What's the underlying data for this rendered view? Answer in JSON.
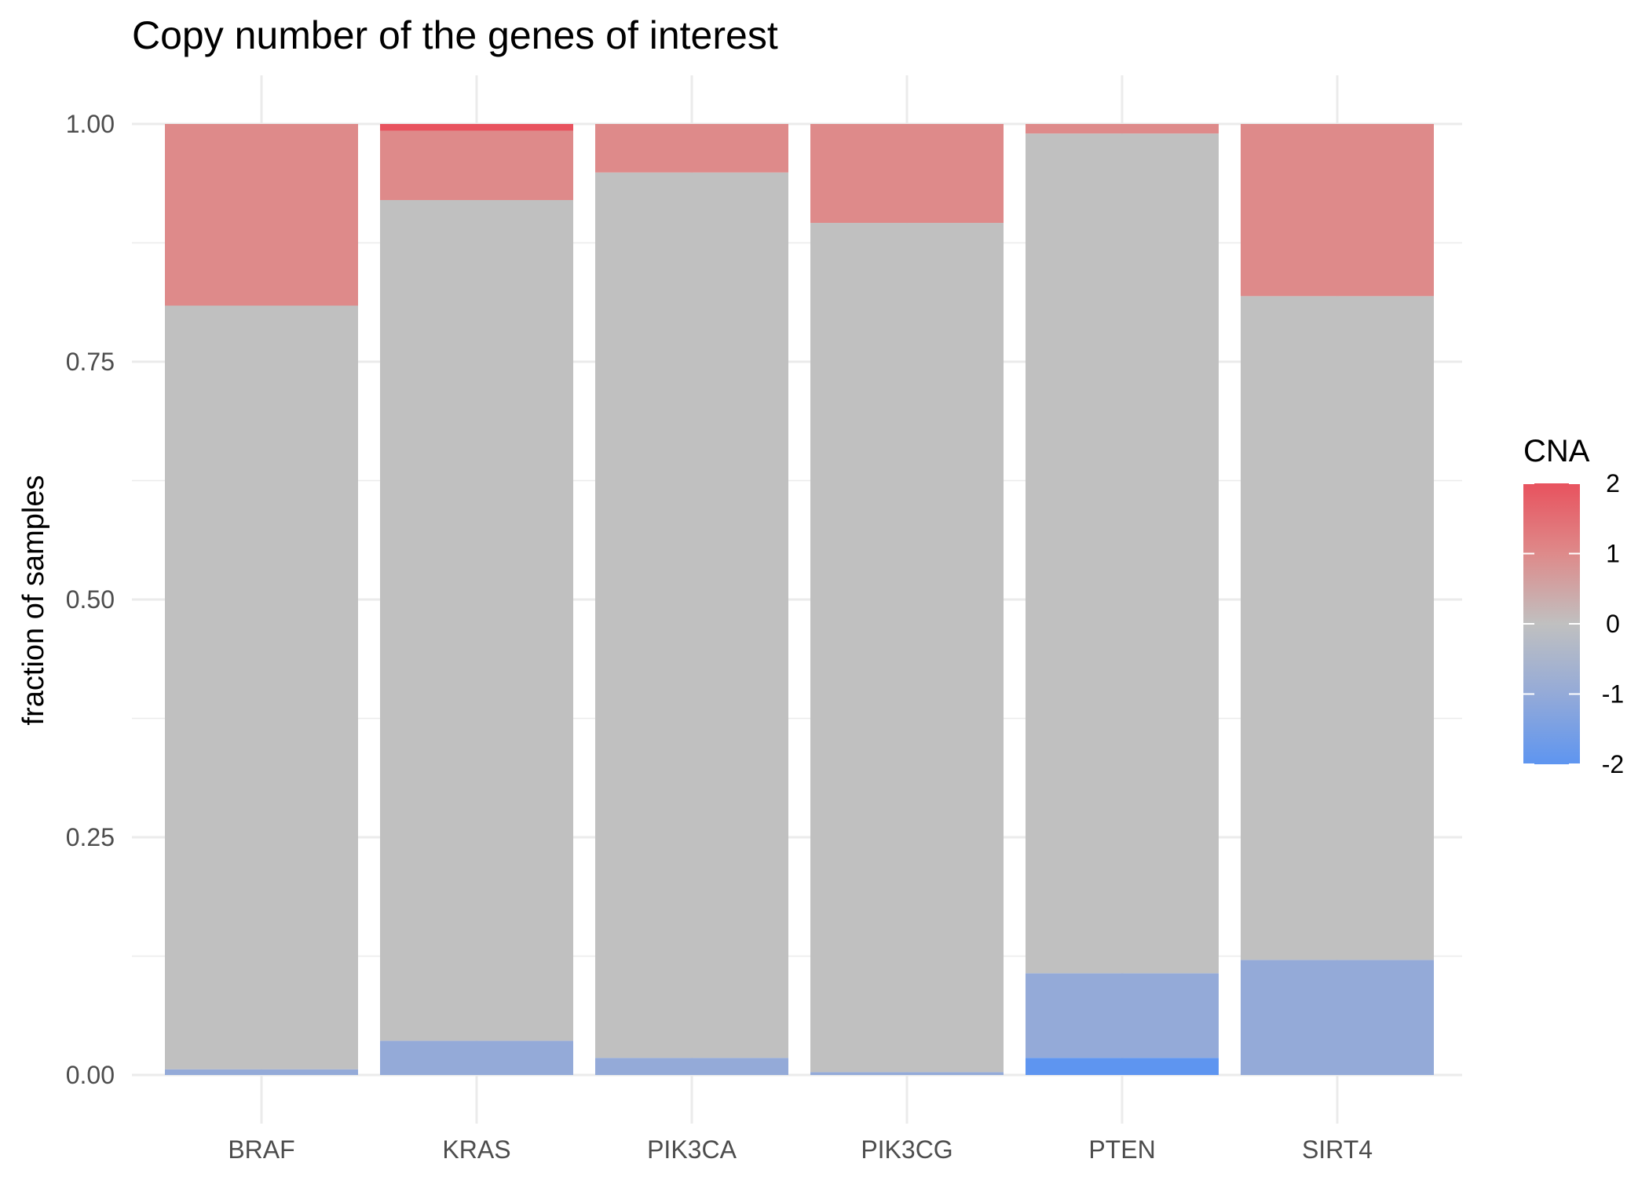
{
  "chart_data": {
    "type": "bar",
    "stacked": true,
    "title": "Copy number of the genes of interest",
    "xlabel": "",
    "ylabel": "fraction of samples",
    "ylim": [
      0,
      1
    ],
    "y_ticks": [
      "0.00",
      "0.25",
      "0.50",
      "0.75",
      "1.00"
    ],
    "grid": true,
    "categories": [
      "BRAF",
      "KRAS",
      "PIK3CA",
      "PIK3CG",
      "PTEN",
      "SIRT4"
    ],
    "series": [
      {
        "cna": -2,
        "color": "#5e95f0",
        "values": [
          0,
          0,
          0,
          0,
          0.018,
          0
        ]
      },
      {
        "cna": -1,
        "color": "#94aad8",
        "values": [
          0.006,
          0.036,
          0.018,
          0.003,
          0.089,
          0.121
        ]
      },
      {
        "cna": 0,
        "color": "#c0c0c0",
        "values": [
          0.803,
          0.884,
          0.931,
          0.893,
          0.883,
          0.698
        ]
      },
      {
        "cna": 1,
        "color": "#de8a8a",
        "values": [
          0.191,
          0.073,
          0.051,
          0.104,
          0.01,
          0.181
        ]
      },
      {
        "cna": 2,
        "color": "#e8525e",
        "values": [
          0,
          0.007,
          0,
          0,
          0,
          0
        ]
      }
    ],
    "legend": {
      "title": "CNA",
      "placement": "right",
      "ticks": [
        "2",
        "1",
        "0",
        "-1",
        "-2"
      ],
      "gradient": [
        "#e8525e",
        "#de8a8a",
        "#c0c0c0",
        "#94aad8",
        "#5e95f0"
      ]
    }
  }
}
